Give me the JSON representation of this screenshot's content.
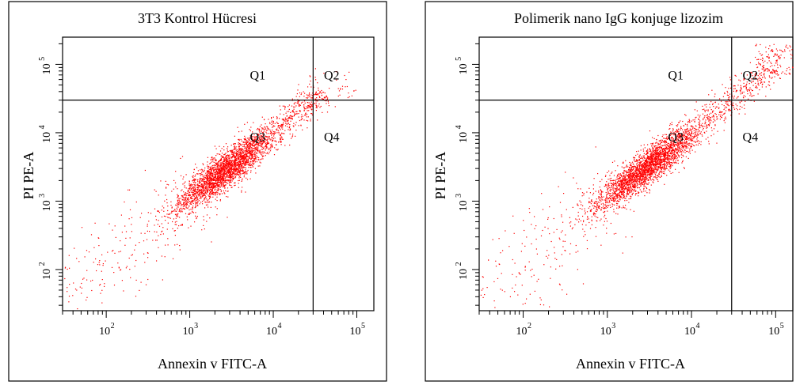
{
  "chart_data": [
    {
      "type": "scatter",
      "title": "3T3 Kontrol Hücresi",
      "xlabel": "Annexin v FITC-A",
      "ylabel": "PI PE-A",
      "xscale": "log",
      "yscale": "log",
      "xlim": [
        30,
        160000
      ],
      "ylim": [
        25,
        250000
      ],
      "xticks": [
        {
          "base": "10",
          "exp": "2",
          "value": 100
        },
        {
          "base": "10",
          "exp": "3",
          "value": 1000
        },
        {
          "base": "10",
          "exp": "4",
          "value": 10000
        },
        {
          "base": "10",
          "exp": "5",
          "value": 100000
        }
      ],
      "yticks": [
        {
          "base": "10",
          "exp": "2",
          "value": 100
        },
        {
          "base": "10",
          "exp": "3",
          "value": 1000
        },
        {
          "base": "10",
          "exp": "4",
          "value": 10000
        },
        {
          "base": "10",
          "exp": "5",
          "value": 100000
        }
      ],
      "gate": {
        "x": 30000,
        "y": 30000
      },
      "quadrants": [
        {
          "label": "Q1",
          "x": 6500,
          "y": 60000
        },
        {
          "label": "Q2",
          "x": 50000,
          "y": 60000
        },
        {
          "label": "Q3",
          "x": 6500,
          "y": 7500
        },
        {
          "label": "Q4",
          "x": 50000,
          "y": 7500
        }
      ],
      "cloud": {
        "dense_center": [
          2500,
          2700
        ],
        "cluster_spread": 0.28,
        "color": "#ff0000",
        "tail_to": [
          30,
          40
        ],
        "head_to": [
          40000,
          40000
        ]
      },
      "grid": false,
      "legend": "none"
    },
    {
      "type": "scatter",
      "title": "Polimerik nano IgG konjuge lizozim",
      "xlabel": "Annexin v FITC-A",
      "ylabel": "PI PE-A",
      "xscale": "log",
      "yscale": "log",
      "xlim": [
        30,
        160000
      ],
      "ylim": [
        25,
        250000
      ],
      "xticks": [
        {
          "base": "10",
          "exp": "2",
          "value": 100
        },
        {
          "base": "10",
          "exp": "3",
          "value": 1000
        },
        {
          "base": "10",
          "exp": "4",
          "value": 10000
        },
        {
          "base": "10",
          "exp": "5",
          "value": 100000
        }
      ],
      "yticks": [
        {
          "base": "10",
          "exp": "2",
          "value": 100
        },
        {
          "base": "10",
          "exp": "3",
          "value": 1000
        },
        {
          "base": "10",
          "exp": "4",
          "value": 10000
        },
        {
          "base": "10",
          "exp": "5",
          "value": 100000
        }
      ],
      "gate": {
        "x": 30000,
        "y": 30000
      },
      "quadrants": [
        {
          "label": "Q1",
          "x": 6500,
          "y": 60000
        },
        {
          "label": "Q2",
          "x": 50000,
          "y": 60000
        },
        {
          "label": "Q3",
          "x": 6500,
          "y": 7500
        },
        {
          "label": "Q4",
          "x": 50000,
          "y": 7500
        }
      ],
      "cloud": {
        "dense_center": [
          2800,
          3000
        ],
        "cluster_spread": 0.3,
        "color": "#ff0000",
        "tail_to": [
          30,
          40
        ],
        "head_to": [
          90000,
          90000
        ]
      },
      "grid": false,
      "legend": "none"
    }
  ]
}
